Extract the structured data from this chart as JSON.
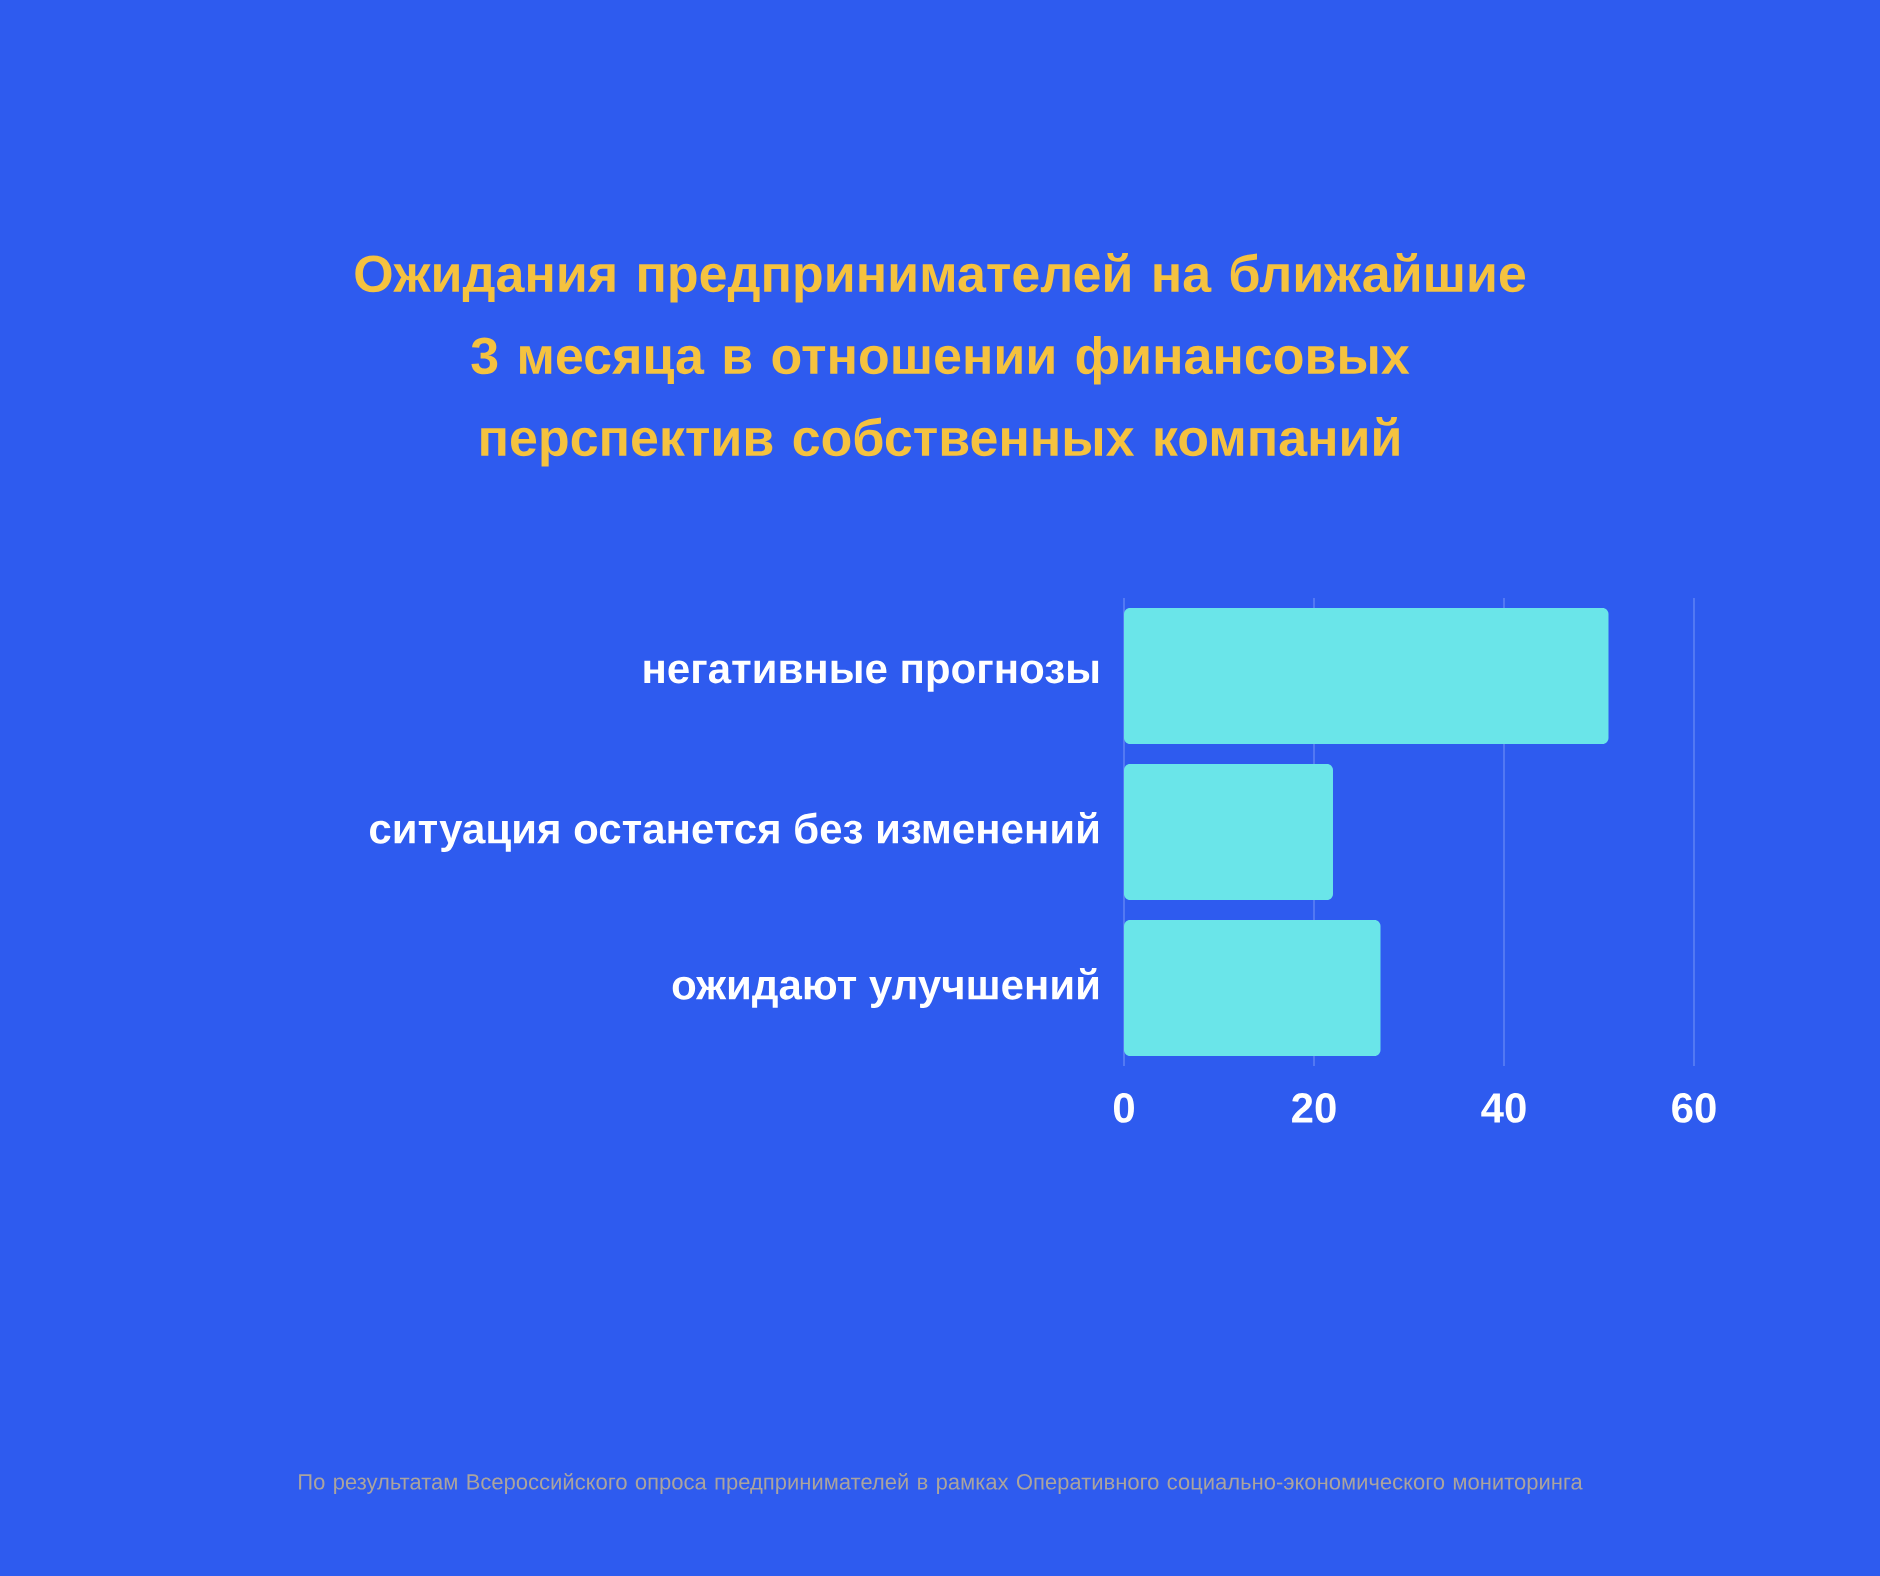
{
  "chart_data": {
    "type": "bar",
    "orientation": "horizontal",
    "title": "Ожидания предпринимателей на ближайшие 3 месяца в отношении финансовых перспектив собственных компаний",
    "categories": [
      "негативные прогнозы",
      "ситуация останется без изменений",
      "ожидают улучшений"
    ],
    "values": [
      51,
      22,
      27
    ],
    "color": "#6ae5e9",
    "xlim": [
      0,
      60
    ],
    "xticks": [
      0,
      20,
      40,
      60
    ],
    "grid": "x",
    "annotations": [
      "По результатам Всероссийского опроса предпринимателей в рамках Оперативного социально-экономического мониторинга"
    ]
  }
}
